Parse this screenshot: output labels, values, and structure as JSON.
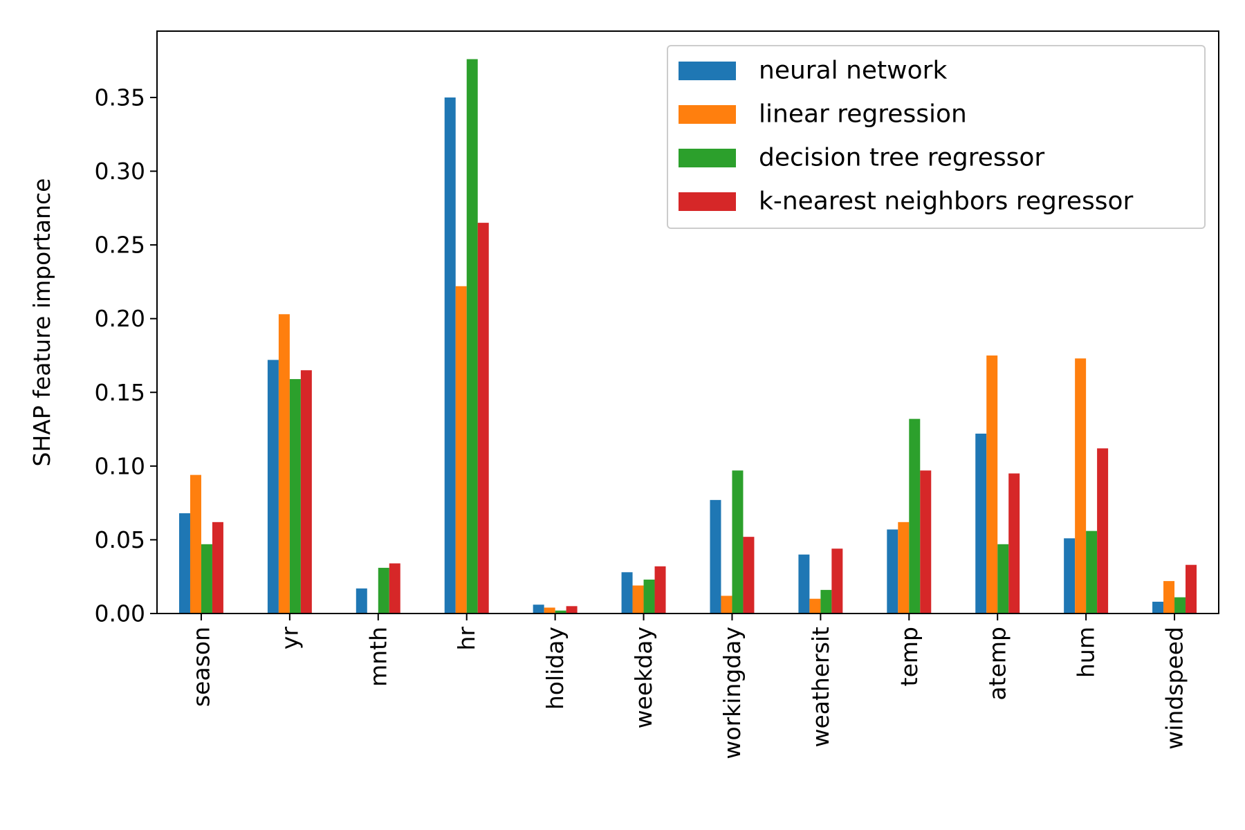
{
  "chart_data": {
    "type": "bar",
    "title": "",
    "xlabel": "",
    "ylabel": "SHAP feature importance",
    "categories": [
      "season",
      "yr",
      "mnth",
      "hr",
      "holiday",
      "weekday",
      "workingday",
      "weathersit",
      "temp",
      "atemp",
      "hum",
      "windspeed"
    ],
    "ylim": [
      0,
      0.395
    ],
    "yticks": [
      0.0,
      0.05,
      0.1,
      0.15,
      0.2,
      0.25,
      0.3,
      0.35
    ],
    "ytick_labels": [
      "0.00",
      "0.05",
      "0.10",
      "0.15",
      "0.20",
      "0.25",
      "0.30",
      "0.35"
    ],
    "grid": false,
    "legend_position": "upper right",
    "series": [
      {
        "name": "neural network",
        "color": "#1f77b4",
        "values": [
          0.068,
          0.172,
          0.017,
          0.35,
          0.006,
          0.028,
          0.077,
          0.04,
          0.057,
          0.122,
          0.051,
          0.008
        ]
      },
      {
        "name": "linear regression",
        "color": "#ff7f0e",
        "values": [
          0.094,
          0.203,
          0.0,
          0.222,
          0.004,
          0.019,
          0.012,
          0.01,
          0.062,
          0.175,
          0.173,
          0.022
        ]
      },
      {
        "name": "decision tree regressor",
        "color": "#2ca02c",
        "values": [
          0.047,
          0.159,
          0.031,
          0.376,
          0.002,
          0.023,
          0.097,
          0.016,
          0.132,
          0.047,
          0.056,
          0.011
        ]
      },
      {
        "name": "k-nearest neighbors regressor",
        "color": "#d62728",
        "values": [
          0.062,
          0.165,
          0.034,
          0.265,
          0.005,
          0.032,
          0.052,
          0.044,
          0.097,
          0.095,
          0.112,
          0.033
        ]
      }
    ]
  }
}
